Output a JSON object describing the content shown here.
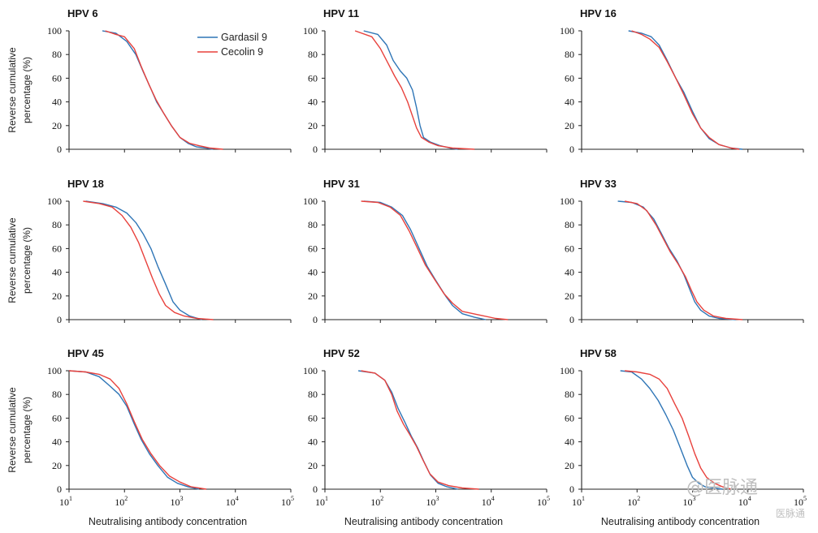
{
  "figure": {
    "y_axis_label_line1": "Reverse cumulative",
    "y_axis_label_line2": "percentage (%)",
    "x_axis_label": "Neutralising antibody concentration",
    "watermark_main": "@医脉通",
    "watermark_sub": "医脉通"
  },
  "legend": {
    "placement": "top-right of first panel",
    "entries": [
      {
        "name": "Gardasil 9",
        "color": "#2e75b6"
      },
      {
        "name": "Cecolin 9",
        "color": "#e8413c"
      }
    ]
  },
  "colors": {
    "gardasil": "#2e75b6",
    "cecolin": "#e8413c",
    "axis": "#222222"
  },
  "chart_data": [
    {
      "type": "line",
      "title": "HPV 6",
      "xlabel": "",
      "ylabel": "Reverse cumulative percentage (%)",
      "x_scale": "log",
      "xlim": [
        10,
        100000
      ],
      "ylim": [
        0,
        100
      ],
      "yticks": [
        0,
        20,
        40,
        60,
        80,
        100
      ],
      "xticks": [
        "10^1",
        "10^2",
        "10^3",
        "10^4",
        "10^5"
      ],
      "series": [
        {
          "name": "Gardasil 9",
          "x": [
            40,
            70,
            110,
            160,
            220,
            300,
            380,
            500,
            700,
            1000,
            1400,
            2000,
            3000,
            4000
          ],
          "y": [
            100,
            98,
            91,
            80,
            65,
            51,
            40,
            31,
            20,
            10,
            5,
            2,
            1,
            0
          ]
        },
        {
          "name": "Cecolin 9",
          "x": [
            45,
            70,
            100,
            150,
            200,
            280,
            370,
            500,
            700,
            1000,
            1500,
            2200,
            3500,
            6000
          ],
          "y": [
            100,
            97,
            95,
            85,
            70,
            54,
            42,
            31,
            20,
            10,
            5,
            3,
            1,
            0
          ]
        }
      ]
    },
    {
      "type": "line",
      "title": "HPV 11",
      "xlabel": "",
      "ylabel": "",
      "x_scale": "log",
      "xlim": [
        10,
        100000
      ],
      "ylim": [
        0,
        100
      ],
      "yticks": [
        0,
        20,
        40,
        60,
        80,
        100
      ],
      "xticks": [
        "10^1",
        "10^2",
        "10^3",
        "10^4",
        "10^5"
      ],
      "series": [
        {
          "name": "Gardasil 9",
          "x": [
            50,
            90,
            130,
            170,
            230,
            300,
            380,
            450,
            520,
            600,
            800,
            1200,
            1800,
            2500
          ],
          "y": [
            100,
            97,
            88,
            75,
            66,
            60,
            50,
            35,
            20,
            10,
            6,
            3,
            1,
            0
          ]
        },
        {
          "name": "Cecolin 9",
          "x": [
            35,
            70,
            100,
            140,
            180,
            240,
            310,
            380,
            450,
            550,
            750,
            1100,
            2000,
            5000
          ],
          "y": [
            100,
            95,
            85,
            72,
            62,
            52,
            40,
            28,
            18,
            10,
            6,
            3,
            1,
            0
          ]
        }
      ]
    },
    {
      "type": "line",
      "title": "HPV 16",
      "xlabel": "",
      "ylabel": "",
      "x_scale": "log",
      "xlim": [
        10,
        100000
      ],
      "ylim": [
        0,
        100
      ],
      "yticks": [
        0,
        20,
        40,
        60,
        80,
        100
      ],
      "xticks": [
        "10^1",
        "10^2",
        "10^3",
        "10^4",
        "10^5"
      ],
      "series": [
        {
          "name": "Gardasil 9",
          "x": [
            70,
            120,
            180,
            250,
            350,
            500,
            700,
            1000,
            1400,
            2000,
            3000,
            5000,
            8000
          ],
          "y": [
            100,
            98,
            95,
            88,
            75,
            60,
            48,
            32,
            18,
            9,
            4,
            1,
            0
          ]
        },
        {
          "name": "Cecolin 9",
          "x": [
            80,
            120,
            170,
            250,
            350,
            500,
            700,
            1000,
            1400,
            2000,
            3000,
            5000,
            7000
          ],
          "y": [
            100,
            97,
            93,
            86,
            74,
            60,
            46,
            30,
            18,
            10,
            4,
            1,
            0
          ]
        }
      ]
    },
    {
      "type": "line",
      "title": "HPV 18",
      "xlabel": "Neutralising antibody concentration",
      "ylabel": "Reverse cumulative percentage (%)",
      "x_scale": "log",
      "xlim": [
        10,
        100000
      ],
      "ylim": [
        0,
        100
      ],
      "yticks": [
        0,
        20,
        40,
        60,
        80,
        100
      ],
      "xticks": [
        "10^1",
        "10^2",
        "10^3",
        "10^4",
        "10^5"
      ],
      "series": [
        {
          "name": "Gardasil 9",
          "x": [
            20,
            40,
            70,
            110,
            160,
            220,
            300,
            400,
            550,
            750,
            1000,
            1500,
            2500
          ],
          "y": [
            100,
            98,
            95,
            90,
            82,
            72,
            60,
            45,
            30,
            15,
            8,
            3,
            0
          ]
        },
        {
          "name": "Cecolin 9",
          "x": [
            18,
            35,
            60,
            90,
            130,
            180,
            240,
            320,
            420,
            550,
            800,
            1200,
            2000,
            4000
          ],
          "y": [
            100,
            98,
            95,
            88,
            78,
            65,
            50,
            35,
            22,
            12,
            6,
            3,
            1,
            0
          ]
        }
      ]
    },
    {
      "type": "line",
      "title": "HPV 31",
      "xlabel": "Neutralising antibody concentration",
      "ylabel": "",
      "x_scale": "log",
      "xlim": [
        10,
        100000
      ],
      "ylim": [
        0,
        100
      ],
      "yticks": [
        0,
        20,
        40,
        60,
        80,
        100
      ],
      "xticks": [
        "10^1",
        "10^2",
        "10^3",
        "10^4",
        "10^5"
      ],
      "series": [
        {
          "name": "Gardasil 9",
          "x": [
            50,
            100,
            160,
            250,
            350,
            500,
            700,
            1000,
            1500,
            2000,
            3000,
            5000,
            8000
          ],
          "y": [
            100,
            99,
            95,
            88,
            76,
            60,
            45,
            33,
            20,
            12,
            5,
            2,
            0
          ]
        },
        {
          "name": "Cecolin 9",
          "x": [
            45,
            90,
            150,
            230,
            330,
            470,
            650,
            950,
            1400,
            2000,
            3000,
            6000,
            12000,
            20000
          ],
          "y": [
            100,
            99,
            95,
            88,
            75,
            60,
            46,
            34,
            22,
            14,
            7,
            4,
            1,
            0
          ]
        }
      ]
    },
    {
      "type": "line",
      "title": "HPV 33",
      "xlabel": "Neutralising antibody concentration",
      "ylabel": "",
      "x_scale": "log",
      "xlim": [
        10,
        100000
      ],
      "ylim": [
        0,
        100
      ],
      "yticks": [
        0,
        20,
        40,
        60,
        80,
        100
      ],
      "xticks": [
        "10^1",
        "10^2",
        "10^3",
        "10^4",
        "10^5"
      ],
      "series": [
        {
          "name": "Gardasil 9",
          "x": [
            45,
            80,
            130,
            200,
            280,
            380,
            520,
            700,
            900,
            1100,
            1400,
            2000,
            3000,
            6000
          ],
          "y": [
            100,
            99,
            95,
            85,
            72,
            60,
            50,
            38,
            25,
            15,
            8,
            3,
            1,
            0
          ]
        },
        {
          "name": "Cecolin 9",
          "x": [
            60,
            100,
            150,
            220,
            300,
            400,
            550,
            750,
            950,
            1200,
            1600,
            2400,
            4000,
            8000
          ],
          "y": [
            100,
            98,
            92,
            80,
            68,
            57,
            47,
            36,
            25,
            15,
            8,
            3,
            1,
            0
          ]
        }
      ]
    },
    {
      "type": "line",
      "title": "HPV 45",
      "xlabel": "Neutralising antibody concentration",
      "ylabel": "Reverse cumulative percentage (%)",
      "x_scale": "log",
      "xlim": [
        10,
        100000
      ],
      "ylim": [
        0,
        100
      ],
      "yticks": [
        0,
        20,
        40,
        60,
        80,
        100
      ],
      "xticks": [
        "10^1",
        "10^2",
        "10^3",
        "10^4",
        "10^5"
      ],
      "series": [
        {
          "name": "Gardasil 9",
          "x": [
            10,
            20,
            35,
            55,
            80,
            110,
            150,
            200,
            280,
            400,
            600,
            900,
            1400,
            2200
          ],
          "y": [
            100,
            99,
            95,
            87,
            80,
            70,
            55,
            42,
            30,
            20,
            10,
            5,
            2,
            0
          ]
        },
        {
          "name": "Cecolin 9",
          "x": [
            10,
            20,
            35,
            55,
            80,
            110,
            150,
            210,
            300,
            430,
            650,
            1000,
            1600,
            3000
          ],
          "y": [
            100,
            99,
            97,
            93,
            85,
            72,
            57,
            42,
            30,
            20,
            11,
            6,
            2,
            0
          ]
        }
      ]
    },
    {
      "type": "line",
      "title": "HPV 52",
      "xlabel": "Neutralising antibody concentration",
      "ylabel": "",
      "x_scale": "log",
      "xlim": [
        10,
        100000
      ],
      "ylim": [
        0,
        100
      ],
      "yticks": [
        0,
        20,
        40,
        60,
        80,
        100
      ],
      "xticks": [
        "10^1",
        "10^2",
        "10^3",
        "10^4",
        "10^5"
      ],
      "series": [
        {
          "name": "Gardasil 9",
          "x": [
            40,
            80,
            120,
            160,
            210,
            280,
            360,
            470,
            600,
            800,
            1100,
            1600,
            2500
          ],
          "y": [
            100,
            98,
            92,
            82,
            68,
            56,
            45,
            35,
            24,
            12,
            5,
            2,
            0
          ]
        },
        {
          "name": "Cecolin 9",
          "x": [
            45,
            80,
            120,
            160,
            200,
            260,
            340,
            450,
            580,
            780,
            1100,
            1700,
            3000,
            6000
          ],
          "y": [
            100,
            98,
            92,
            80,
            66,
            55,
            46,
            36,
            25,
            13,
            6,
            3,
            1,
            0
          ]
        }
      ]
    },
    {
      "type": "line",
      "title": "HPV 58",
      "xlabel": "Neutralising antibody concentration",
      "ylabel": "",
      "x_scale": "log",
      "xlim": [
        10,
        100000
      ],
      "ylim": [
        0,
        100
      ],
      "yticks": [
        0,
        20,
        40,
        60,
        80,
        100
      ],
      "xticks": [
        "10^1",
        "10^2",
        "10^3",
        "10^4",
        "10^5"
      ],
      "series": [
        {
          "name": "Gardasil 9",
          "x": [
            50,
            80,
            120,
            170,
            240,
            330,
            450,
            600,
            800,
            1000,
            1300,
            1700,
            2400,
            3500
          ],
          "y": [
            100,
            99,
            93,
            85,
            75,
            63,
            50,
            35,
            20,
            10,
            5,
            2,
            1,
            0
          ]
        },
        {
          "name": "Cecolin 9",
          "x": [
            60,
            100,
            170,
            250,
            350,
            480,
            650,
            850,
            1100,
            1400,
            1800,
            2500,
            3500,
            5000
          ],
          "y": [
            100,
            99,
            97,
            93,
            85,
            72,
            60,
            45,
            30,
            18,
            10,
            5,
            2,
            0
          ]
        }
      ]
    }
  ]
}
